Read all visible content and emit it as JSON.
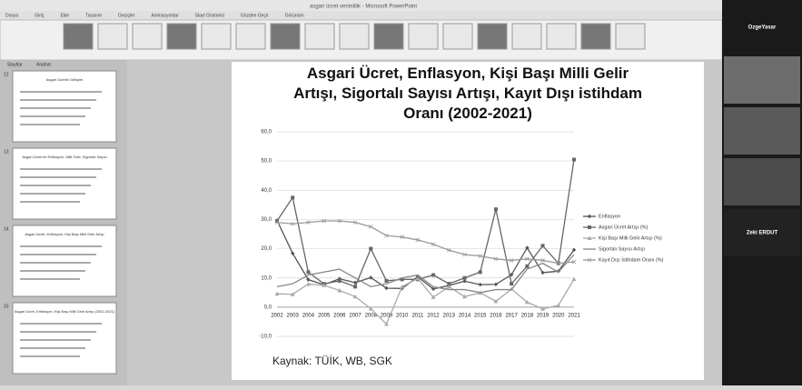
{
  "window_title": "asgari ücret verimlilik - Microsoft PowerPoint",
  "ribbon_tabs": [
    "Dosya",
    "Giriş",
    "Ekle",
    "Tasarım",
    "Geçişler",
    "Animasyonlar",
    "Slayt Gösterisi",
    "Gözden Geçir",
    "Görünüm"
  ],
  "pane_tabs": [
    "Slaytlar",
    "Anahat"
  ],
  "thumbnails": [
    {
      "number": "12",
      "title": "Asgari Ücretin Gelişimi"
    },
    {
      "number": "13",
      "title": "Asgari Ücret ile Enflasyon, Milli Gelir, Sigortalı Sayısı"
    },
    {
      "number": "14",
      "title": "Asgari Ücret, Enflasyon, Kişi Başı Milli Gelir Artışı"
    },
    {
      "number": "15",
      "title": "Asgari Ücret, Enflasyon, Kişi Başı Milli Gelir Artışı (2002-2021)"
    }
  ],
  "participants": [
    "OzgeYasar",
    "Zeki ERDUT"
  ],
  "source": "Kaynak: TÜİK, WB, SGK",
  "chart_data": {
    "type": "line",
    "title": "Asgari Ücret, Enflasyon, Kişi Başı Milli Gelir Artışı, Sigortalı Sayısı Artışı, Kayıt Dışı istihdam Oranı (2002-2021)",
    "categories": [
      "2002",
      "2003",
      "2004",
      "2005",
      "2006",
      "2007",
      "2008",
      "2009",
      "2010",
      "2011",
      "2012",
      "2013",
      "2014",
      "2015",
      "2016",
      "2017",
      "2018",
      "2019",
      "2020",
      "2021"
    ],
    "ylim": [
      -10,
      60
    ],
    "yticks": [
      {
        "value": -10,
        "label": "-10,0"
      },
      {
        "value": 0,
        "label": "0,0"
      },
      {
        "value": 10,
        "label": "10,0"
      },
      {
        "value": 20,
        "label": "20,0"
      },
      {
        "value": 30,
        "label": "30,0"
      },
      {
        "value": 40,
        "label": "40,0"
      },
      {
        "value": 50,
        "label": "50,0"
      },
      {
        "value": 60,
        "label": "60,0"
      }
    ],
    "grid": true,
    "legend": "right",
    "series": [
      {
        "name": "Enflasyon",
        "color": "#555555",
        "marker": "diamond",
        "values": [
          29.7,
          18.4,
          9.4,
          7.7,
          9.7,
          8.4,
          10.1,
          6.5,
          6.4,
          10.4,
          6.2,
          7.4,
          8.9,
          7.7,
          7.8,
          11.1,
          20.3,
          11.8,
          12.3,
          19.6
        ]
      },
      {
        "name": "Asgari Ücret Artışı (%)",
        "color": "#666666",
        "marker": "square",
        "values": [
          29.5,
          37.5,
          12,
          8,
          9,
          7,
          20,
          9,
          9.5,
          9.5,
          11,
          8,
          10,
          12,
          33.5,
          8,
          14,
          21,
          15,
          50.5
        ]
      },
      {
        "name": "Kişi Başı Milli Gelir Artışı (%)",
        "color": "#aaaaaa",
        "marker": "triangle",
        "values": [
          4.6,
          4.4,
          7.9,
          7.5,
          5.7,
          3.6,
          -0.5,
          -5.8,
          7,
          9.8,
          3.4,
          7,
          3.6,
          4.9,
          2,
          6.2,
          1.7,
          -0.6,
          0.6,
          9.6
        ]
      },
      {
        "name": "Sigortalı Sayısı Artışı",
        "color": "#888888",
        "marker": "none",
        "values": [
          7,
          8,
          11,
          12,
          13,
          10,
          7,
          8,
          10,
          11,
          7,
          6,
          6,
          5,
          6,
          6,
          13,
          15,
          12,
          18
        ]
      },
      {
        "name": "Kayıt Dışı İstihdam Oranı (%)",
        "color": "#999999",
        "marker": "cross",
        "values": [
          29,
          28.5,
          29,
          29.5,
          29.5,
          29,
          27.5,
          24.5,
          24,
          23,
          21.5,
          19.5,
          18,
          17.5,
          16.5,
          16,
          16.5,
          16,
          15,
          15.5
        ]
      }
    ]
  }
}
